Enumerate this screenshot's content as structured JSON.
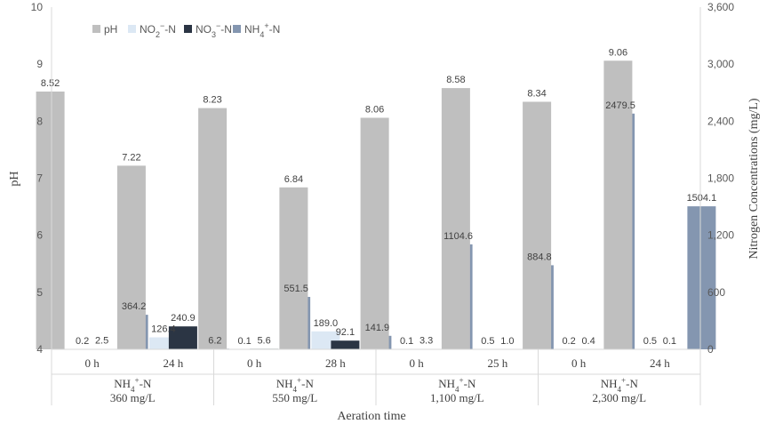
{
  "chart_data": {
    "type": "bar",
    "title": "",
    "xlabel": "Aeration time",
    "ylabel": "pH",
    "y2label": "Nitrogen Concentrations (mg/L)",
    "ylim": [
      4,
      10
    ],
    "y_ticks": [
      "4",
      "5",
      "6",
      "7",
      "8",
      "9",
      "10"
    ],
    "y2lim": [
      0,
      3600
    ],
    "y2_ticks": [
      "0",
      "600",
      "1,200",
      "1,800",
      "2,400",
      "3,000",
      "3,600"
    ],
    "grid": false,
    "legend_position": "top-left",
    "groups": [
      {
        "line1": "NH4+-N",
        "line2": "360 mg/L",
        "times": [
          "0 h",
          "24 h"
        ]
      },
      {
        "line1": "NH4+-N",
        "line2": "550 mg/L",
        "times": [
          "0 h",
          "28 h"
        ]
      },
      {
        "line1": "NH4+-N",
        "line2": "1,100 mg/L",
        "times": [
          "0 h",
          "25 h"
        ]
      },
      {
        "line1": "NH4+-N",
        "line2": "2,300 mg/L",
        "times": [
          "0 h",
          "24 h"
        ]
      }
    ],
    "series": [
      {
        "name": "pH",
        "axis": "left",
        "color": "#bfbfbf",
        "values": [
          8.52,
          7.22,
          8.23,
          6.84,
          8.06,
          8.58,
          8.34,
          9.06
        ],
        "labels": [
          "8.52",
          "7.22",
          "8.23",
          "6.84",
          "8.06",
          "8.58",
          "8.34",
          "9.06"
        ]
      },
      {
        "name": "NO2−-N",
        "axis": "right",
        "color": "#dce8f4",
        "values": [
          0.2,
          126.4,
          0.1,
          189.0,
          0.1,
          0.5,
          0.2,
          0.5
        ],
        "labels": [
          "0.2",
          "126.4",
          "0.1",
          "189.0",
          "0.1",
          "0.5",
          "0.2",
          "0.5"
        ]
      },
      {
        "name": "NO3−-N",
        "axis": "right",
        "color": "#2b3544",
        "values": [
          2.5,
          240.9,
          5.6,
          92.1,
          3.3,
          1.0,
          0.4,
          0.1
        ],
        "labels": [
          "2.5",
          "240.9",
          "5.6",
          "92.1",
          "3.3",
          "1.0",
          "0.4",
          "0.1"
        ]
      },
      {
        "name": "NH4+-N",
        "axis": "right",
        "color": "#8496b0",
        "values": [
          364.2,
          6.2,
          551.5,
          141.9,
          1104.6,
          884.8,
          2479.5,
          1504.1
        ],
        "labels": [
          "364.2",
          "6.2",
          "551.5",
          "141.9",
          "1104.6",
          "884.8",
          "2479.5",
          "1504.1"
        ]
      }
    ]
  }
}
